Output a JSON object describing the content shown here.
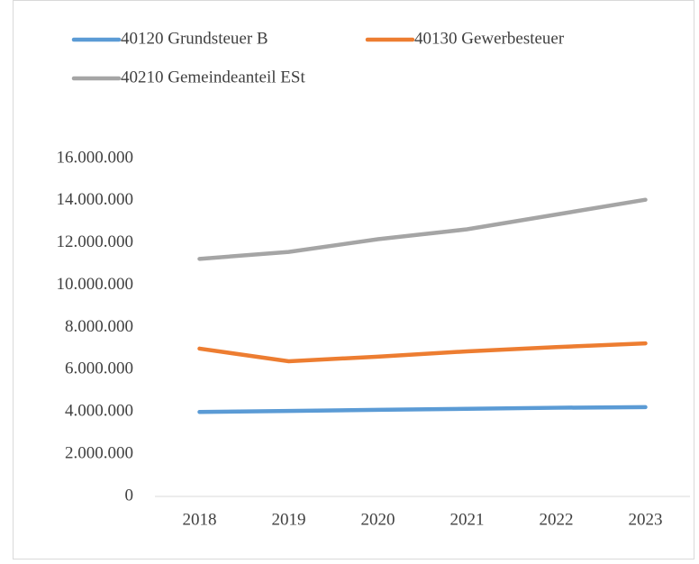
{
  "chart_data": {
    "type": "line",
    "categories": [
      "2018",
      "2019",
      "2020",
      "2021",
      "2022",
      "2023"
    ],
    "series": [
      {
        "name": "40120 Grundsteuer B",
        "color": "#5b9bd5",
        "values": [
          4000000,
          4050000,
          4100000,
          4150000,
          4200000,
          4230000
        ]
      },
      {
        "name": "40130 Gewerbesteuer",
        "color": "#ed7d31",
        "values": [
          7000000,
          6400000,
          6620000,
          6870000,
          7070000,
          7250000
        ]
      },
      {
        "name": "40210 Gemeindeanteil ESt",
        "color": "#a5a5a5",
        "values": [
          11250000,
          11580000,
          12180000,
          12650000,
          13350000,
          14050000
        ]
      }
    ],
    "ylim": [
      0,
      16000000
    ],
    "yticks": [
      0,
      {
        "value": 2000000,
        "label": "2.000.000"
      },
      {
        "value": 4000000,
        "label": "4.000.000"
      },
      {
        "value": 6000000,
        "label": "6.000.000"
      },
      {
        "value": 8000000,
        "label": "8.000.000"
      },
      {
        "value": 10000000,
        "label": "10.000.000"
      },
      {
        "value": 12000000,
        "label": "12.000.000"
      },
      {
        "value": 14000000,
        "label": "14.000.000"
      },
      {
        "value": 16000000,
        "label": "16.000.000"
      }
    ],
    "grid": false,
    "legend": "top"
  }
}
